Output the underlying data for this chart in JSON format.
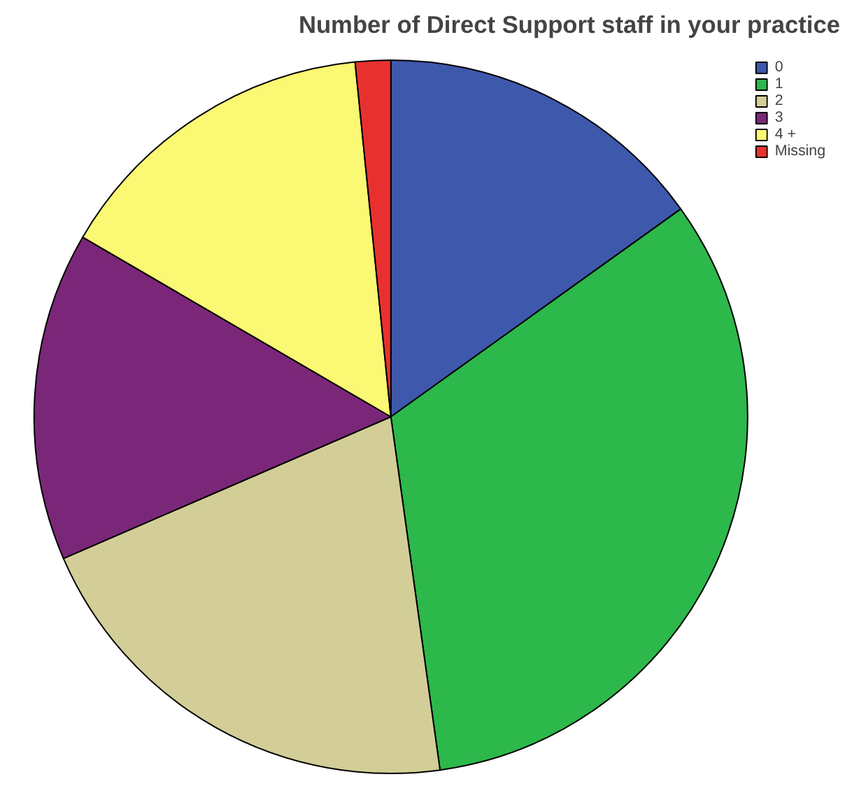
{
  "chart_data": {
    "type": "pie",
    "title": "Number of Direct Support staff in your practice",
    "categories": [
      "0",
      "1",
      "2",
      "3",
      "4 +",
      "Missing"
    ],
    "values": [
      15.1,
      32.7,
      20.7,
      14.9,
      15.0,
      1.6
    ],
    "colors": [
      "#3e58ac",
      "#2db84b",
      "#d3ce97",
      "#7b2779",
      "#fbf873",
      "#e8312f"
    ],
    "legend": "top right"
  }
}
